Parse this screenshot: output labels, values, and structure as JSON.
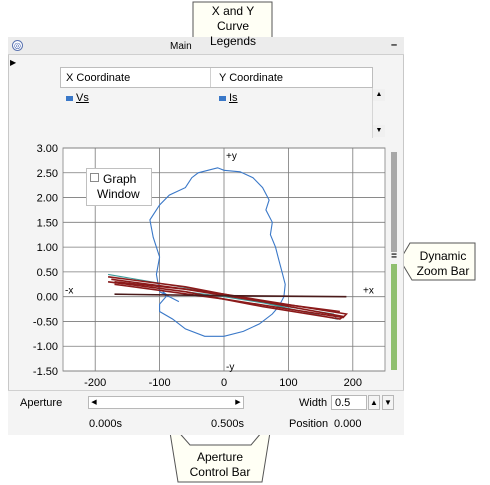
{
  "window": {
    "title": "Main"
  },
  "legend": {
    "x_header": "X Coordinate",
    "y_header": "Y Coordinate",
    "x_series": "Vs",
    "y_series": "Is"
  },
  "graph": {
    "window_label_line1": "Graph",
    "window_label_line2": "Window",
    "axis_markers": {
      "plus_y": "+y",
      "minus_y": "-y",
      "plus_x": "+x",
      "minus_x": "-x"
    }
  },
  "chart_data": {
    "type": "line",
    "title": "",
    "xlabel": "",
    "ylabel": "",
    "xlim": [
      -250,
      250
    ],
    "ylim": [
      -1.5,
      3.0
    ],
    "x_ticks": [
      "-200",
      "-100",
      "0",
      "100",
      "200"
    ],
    "y_ticks": [
      "3.00",
      "2.50",
      "2.00",
      "1.50",
      "1.00",
      "0.50",
      "0.00",
      "-0.50",
      "-1.00",
      "-1.50"
    ],
    "grid": true,
    "series": [
      {
        "color": "#3a78c8",
        "x": [
          -70,
          -100,
          -105,
          -100,
          -110,
          -115,
          -100,
          -85,
          -60,
          -50,
          -40,
          -25,
          -10,
          0,
          25,
          45,
          60,
          70,
          65,
          75,
          72,
          80,
          85,
          90,
          95,
          93,
          85,
          75,
          55,
          30,
          0,
          -30,
          -60,
          -80,
          -100,
          -100,
          -90,
          -95,
          -85,
          -70
        ],
        "y": [
          -0.1,
          0.1,
          0.45,
          0.8,
          1.2,
          1.55,
          1.85,
          2.05,
          2.2,
          2.4,
          2.5,
          2.55,
          2.6,
          2.55,
          2.52,
          2.4,
          2.2,
          1.95,
          1.75,
          1.5,
          1.25,
          1.0,
          0.75,
          0.5,
          0.25,
          0.0,
          -0.2,
          -0.35,
          -0.55,
          -0.7,
          -0.8,
          -0.8,
          -0.65,
          -0.45,
          -0.3,
          -0.15,
          0.0,
          0.1,
          0.0,
          -0.1
        ]
      },
      {
        "color": "#3a9a9a",
        "x": [
          -180,
          0,
          175,
          170,
          0,
          -180
        ],
        "y": [
          0.45,
          0.05,
          -0.45,
          -0.35,
          0.0,
          0.3
        ]
      },
      {
        "color": "#8b1a1a",
        "x": [
          -180,
          -60,
          60,
          185,
          180,
          60,
          -60,
          -180
        ],
        "y": [
          0.4,
          0.2,
          -0.1,
          -0.4,
          -0.45,
          -0.2,
          0.1,
          0.3
        ]
      },
      {
        "color": "#8b1a1a",
        "x": [
          -175,
          0,
          190,
          185,
          0,
          -170
        ],
        "y": [
          0.35,
          0.05,
          -0.35,
          -0.42,
          -0.05,
          0.25
        ]
      },
      {
        "color": "#8b1a1a",
        "x": [
          -170,
          -60,
          60,
          180
        ],
        "y": [
          0.3,
          0.15,
          -0.1,
          -0.3
        ]
      },
      {
        "color": "#4a1a1a",
        "x": [
          -170,
          0,
          190
        ],
        "y": [
          0.05,
          0.02,
          0.0
        ]
      }
    ]
  },
  "zoom_bar": {
    "handle_label": "="
  },
  "aperture": {
    "label": "Aperture",
    "width_label": "Width",
    "width_value": "0.5",
    "start_time": "0.000s",
    "end_time": "0.500s",
    "position_label": "Position",
    "position_value": "0.000"
  },
  "callouts": {
    "legend": [
      "X and Y",
      "Curve",
      "Legends"
    ],
    "zoom": [
      "Dynamic",
      "Zoom Bar"
    ],
    "aperture": [
      "Aperture",
      "Control Bar"
    ]
  }
}
